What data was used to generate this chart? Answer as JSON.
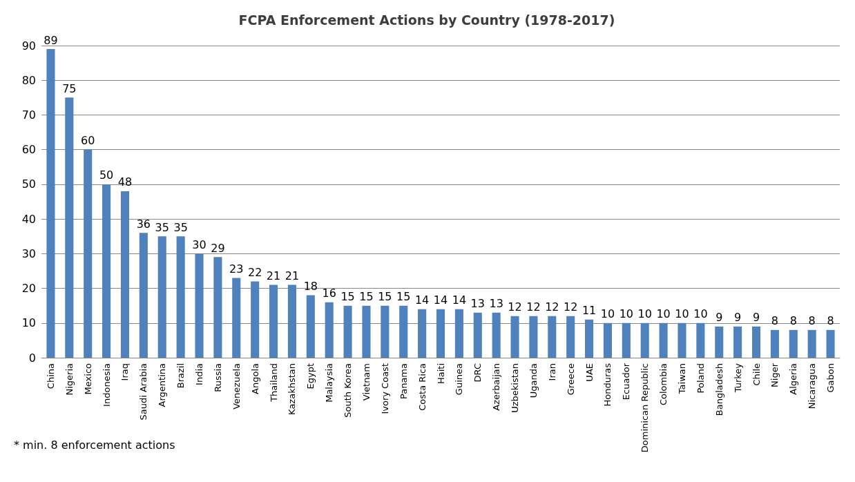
{
  "chart_data": {
    "type": "bar",
    "title": "FCPA Enforcement Actions by Country (1978-2017)",
    "categories": [
      "China",
      "Nigeria",
      "Mexico",
      "Indonesia",
      "Iraq",
      "Saudi Arabia",
      "Argentina",
      "Brazil",
      "India",
      "Russia",
      "Venezuela",
      "Angola",
      "Thailand",
      "Kazakhstan",
      "Egypt",
      "Malaysia",
      "South Korea",
      "Vietnam",
      "Ivory Coast",
      "Panama",
      "Costa Rica",
      "Haiti",
      "Guinea",
      "DRC",
      "Azerbaijan",
      "Uzbekistan",
      "Uganda",
      "Iran",
      "Greece",
      "UAE",
      "Honduras",
      "Ecuador",
      "Dominican Republic",
      "Colombia",
      "Taiwan",
      "Poland",
      "Bangladesh",
      "Turkey",
      "Chile",
      "Niger",
      "Algeria",
      "Nicaragua",
      "Gabon"
    ],
    "values": [
      89,
      75,
      60,
      50,
      48,
      36,
      35,
      35,
      30,
      29,
      23,
      22,
      21,
      21,
      18,
      16,
      15,
      15,
      15,
      15,
      14,
      14,
      14,
      13,
      13,
      12,
      12,
      12,
      12,
      11,
      10,
      10,
      10,
      10,
      10,
      10,
      9,
      9,
      9,
      8,
      8,
      8,
      8
    ],
    "color": "#4f81bd",
    "ylim": [
      0,
      90
    ],
    "yticks": [
      0,
      10,
      20,
      30,
      40,
      50,
      60,
      70,
      80,
      90
    ],
    "grid": "y",
    "data_labels": true,
    "annotations": [
      "* min. 8 enforcement actions"
    ]
  }
}
